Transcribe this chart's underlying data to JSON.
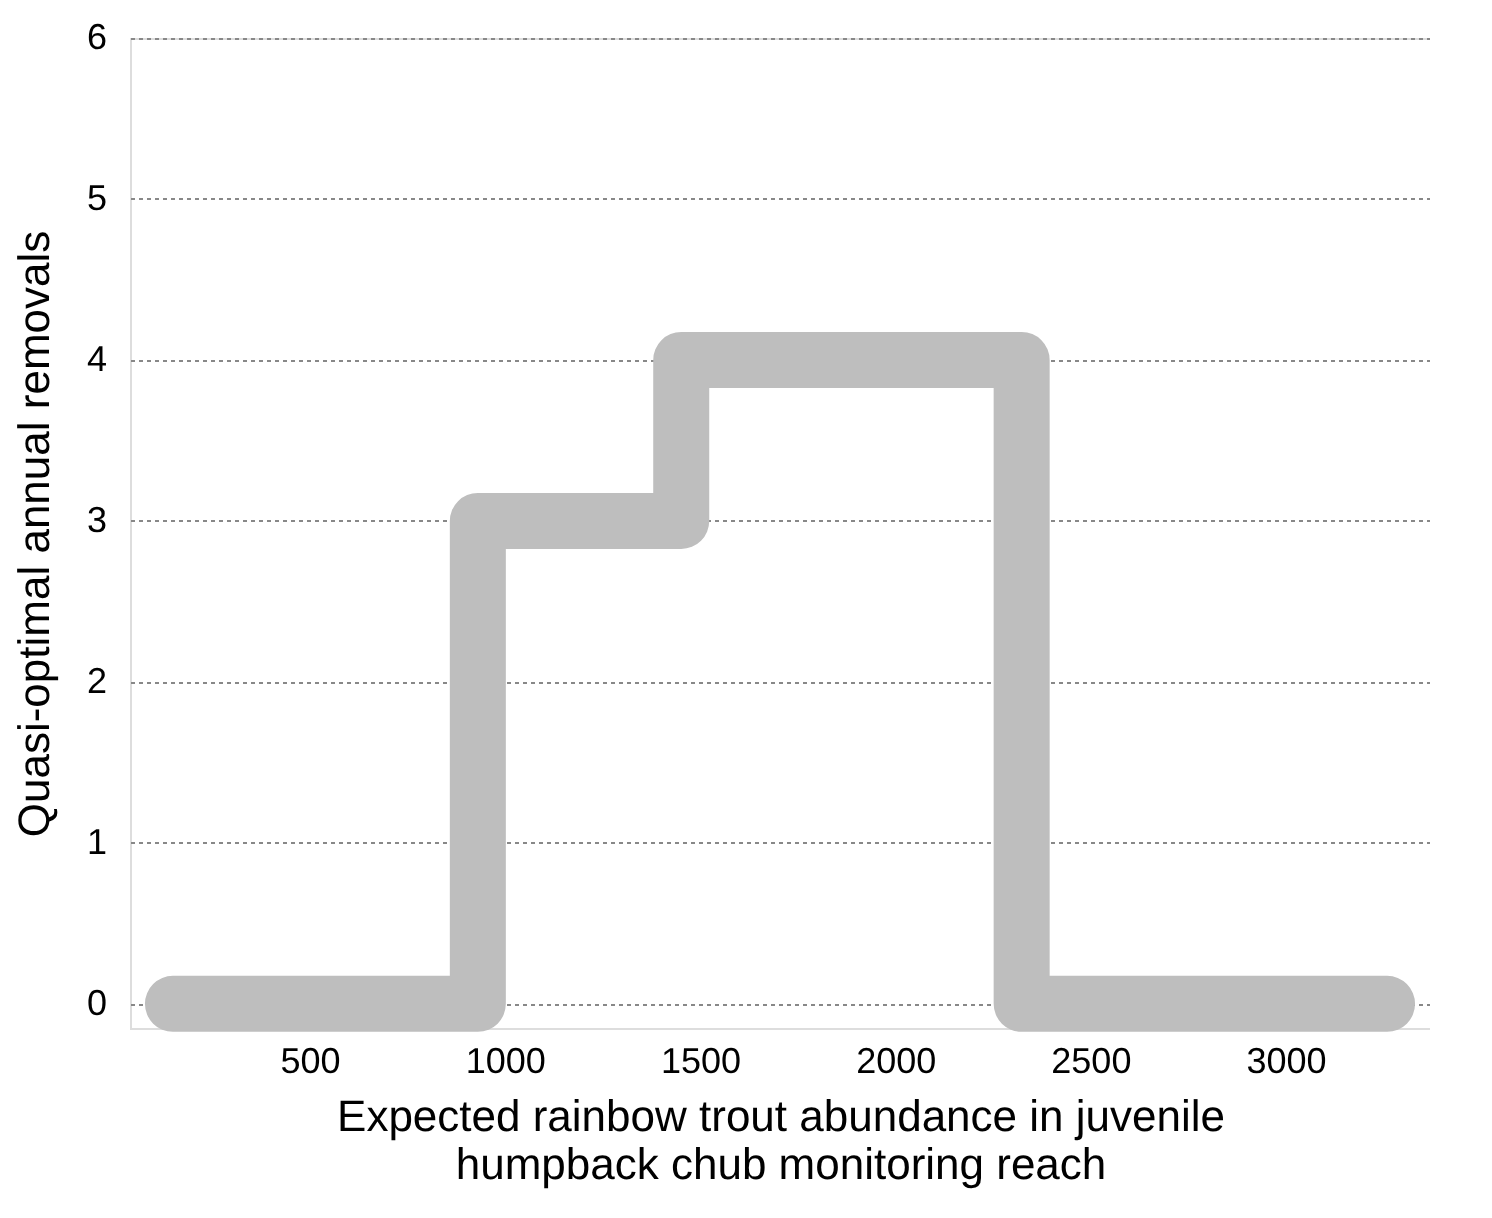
{
  "chart_data": {
    "type": "step",
    "xlabel": "Expected rainbow trout abundance in juvenile\nhumpback chub monitoring reach",
    "ylabel": "Quasi-optimal annual removals",
    "x": [
      150,
      931,
      1452,
      2324,
      3260
    ],
    "series": [
      {
        "color": "#bebebe",
        "values": [
          0,
          3,
          4,
          0,
          0
        ]
      }
    ],
    "xlim": [
      40,
      3370
    ],
    "xticks": [
      500,
      1000,
      1500,
      2000,
      2500,
      3000
    ],
    "ylim": [
      -0.15,
      6
    ],
    "yticks": [
      0,
      1,
      2,
      3,
      4,
      5,
      6
    ],
    "grid": "y"
  }
}
